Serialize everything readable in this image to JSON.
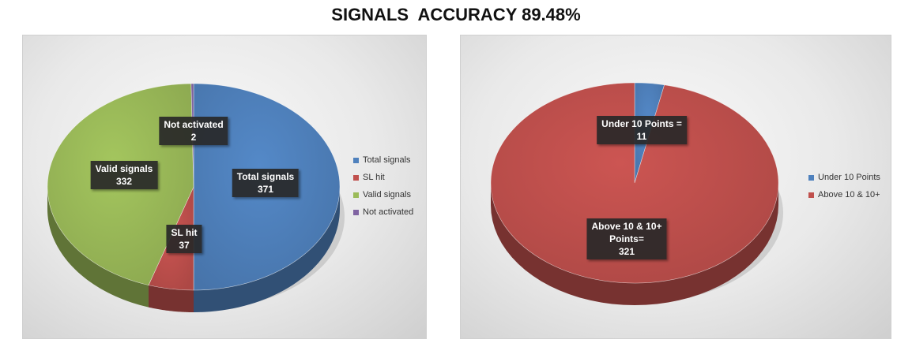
{
  "title": "SIGNALS  ACCURACY 89.48%",
  "chart_data": [
    {
      "type": "pie",
      "title": "",
      "slices": [
        {
          "name": "Total signals",
          "value": 371,
          "color": "#4f81bd",
          "label_lines": [
            "Total signals",
            "371"
          ]
        },
        {
          "name": "SL hit",
          "value": 37,
          "color": "#c0504d",
          "label_lines": [
            "SL hit",
            "37"
          ]
        },
        {
          "name": "Valid signals",
          "value": 332,
          "color": "#9bbb59",
          "label_lines": [
            "Valid signals",
            "332"
          ]
        },
        {
          "name": "Not activated",
          "value": 2,
          "color": "#8064a2",
          "label_lines": [
            "Not activated",
            "2"
          ]
        }
      ],
      "legend": {
        "position": "right",
        "entries": [
          "Total signals",
          "SL hit",
          "Valid signals",
          "Not activated"
        ]
      }
    },
    {
      "type": "pie",
      "title": "",
      "slices": [
        {
          "name": "Under 10 Points",
          "value": 11,
          "color": "#4f81bd",
          "label_lines": [
            "Under 10 Points =",
            "11"
          ]
        },
        {
          "name": "Above 10 & 10+",
          "value": 321,
          "color": "#c0504d",
          "label_lines": [
            "Above 10 & 10+",
            "Points=",
            "321"
          ]
        }
      ],
      "legend": {
        "position": "right",
        "entries": [
          "Under 10 Points",
          "Above 10 & 10+"
        ]
      }
    }
  ]
}
